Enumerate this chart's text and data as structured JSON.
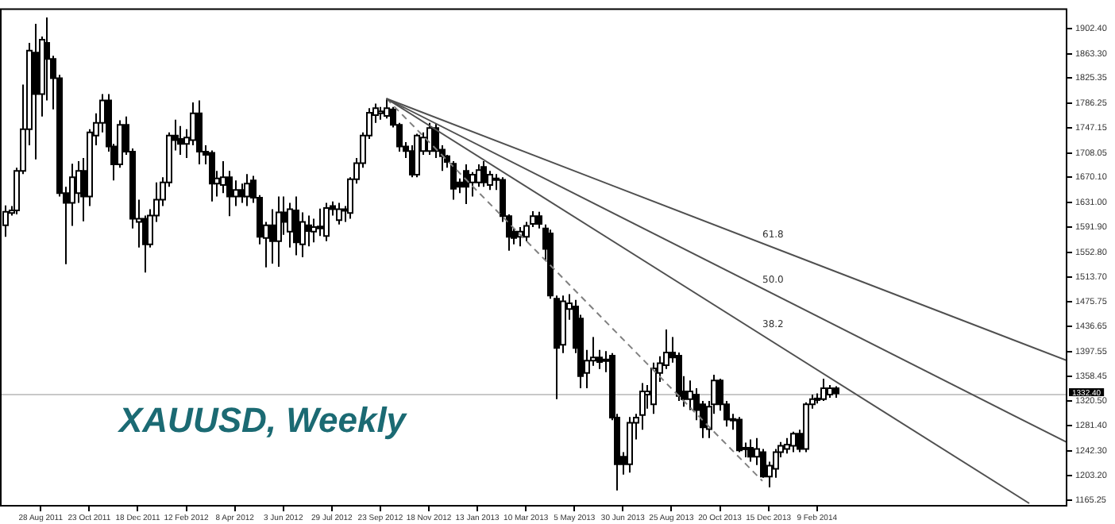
{
  "chart_data": {
    "type": "candlestick",
    "title": "XAUUSD, Weekly",
    "grid": false,
    "legend": false,
    "marker": "none",
    "xlim": [
      "2011-07-12",
      "2014-11-25"
    ],
    "xticks": [
      {
        "value": "2011-08-28",
        "label": "28 Aug 2011"
      },
      {
        "value": "2011-10-23",
        "label": "23 Oct 2011"
      },
      {
        "value": "2011-12-18",
        "label": "18 Dec 2011"
      },
      {
        "value": "2012-02-12",
        "label": "12 Feb 2012"
      },
      {
        "value": "2012-04-08",
        "label": "8 Apr 2012"
      },
      {
        "value": "2012-06-03",
        "label": "3 Jun 2012"
      },
      {
        "value": "2012-07-29",
        "label": "29 Jul 2012"
      },
      {
        "value": "2012-09-23",
        "label": "23 Sep 2012"
      },
      {
        "value": "2012-11-18",
        "label": "18 Nov 2012"
      },
      {
        "value": "2013-01-13",
        "label": "13 Jan 2013"
      },
      {
        "value": "2013-03-10",
        "label": "10 Mar 2013"
      },
      {
        "value": "2013-05-05",
        "label": "5 May 2013"
      },
      {
        "value": "2013-06-30",
        "label": "30 Jun 2013"
      },
      {
        "value": "2013-08-25",
        "label": "25 Aug 2013"
      },
      {
        "value": "2013-10-20",
        "label": "20 Oct 2013"
      },
      {
        "value": "2013-12-15",
        "label": "15 Dec 2013"
      },
      {
        "value": "2014-02-09",
        "label": "9 Feb 2014"
      }
    ],
    "ylim": [
      1155,
      1934
    ],
    "yticks": [
      {
        "value": 1902.4,
        "label": "1902.40"
      },
      {
        "value": 1863.3,
        "label": "1863.30"
      },
      {
        "value": 1825.35,
        "label": "1825.35"
      },
      {
        "value": 1786.25,
        "label": "1786.25"
      },
      {
        "value": 1747.15,
        "label": "1747.15"
      },
      {
        "value": 1708.05,
        "label": "1708.05"
      },
      {
        "value": 1670.1,
        "label": "1670.10"
      },
      {
        "value": 1631,
        "label": "1631.00"
      },
      {
        "value": 1591.9,
        "label": "1591.90"
      },
      {
        "value": 1552.8,
        "label": "1552.80"
      },
      {
        "value": 1513.7,
        "label": "1513.70"
      },
      {
        "value": 1475.75,
        "label": "1475.75"
      },
      {
        "value": 1436.65,
        "label": "1436.65"
      },
      {
        "value": 1397.55,
        "label": "1397.55"
      },
      {
        "value": 1358.45,
        "label": "1358.45"
      },
      {
        "value": 1320.5,
        "label": "1320.50"
      },
      {
        "value": 1281.4,
        "label": "1281.40"
      },
      {
        "value": 1242.3,
        "label": "1242.30"
      },
      {
        "value": 1203.2,
        "label": "1203.20"
      },
      {
        "value": 1165.25,
        "label": "1165.25"
      }
    ],
    "ref_lines": [
      {
        "axis": "y",
        "value": 1332.4,
        "label": "1332.40",
        "color": "#c8c8c8"
      }
    ],
    "annotations": [
      {
        "text": "61.8",
        "x": "2013-12-08",
        "y": 1572
      },
      {
        "text": "50.0",
        "x": "2013-12-08",
        "y": 1502
      },
      {
        "text": "38.2",
        "x": "2013-12-08",
        "y": 1432
      }
    ],
    "series": [
      {
        "type": "candlestick",
        "color": "#000000",
        "colors": [
          "#ffffff",
          "#ffffff",
          "#ffffff",
          "#ffffff",
          "#ffffff",
          "#000000",
          "#ffffff",
          "#000000",
          "#000000",
          "#000000",
          "#000000",
          "#ffffff",
          "#ffffff",
          "#000000",
          "#ffffff",
          "#ffffff",
          "#ffffff",
          "#000000",
          "#000000",
          "#ffffff",
          "#000000",
          "#000000",
          "#ffffff",
          "#000000",
          "#ffffff",
          "#ffffff",
          "#ffffff",
          "#ffffff",
          "#000000",
          "#000000",
          "#ffffff",
          "#ffffff",
          "#000000",
          "#000000",
          "#000000",
          "#ffffff",
          "#ffffff",
          "#000000",
          "#ffffff",
          "#000000",
          "#ffffff",
          "#000000",
          "#000000",
          "#ffffff",
          "#000000",
          "#ffffff",
          "#000000",
          "#ffffff",
          "#000000",
          "#ffffff",
          "#000000",
          "#ffffff",
          "#000000",
          "#ffffff",
          "#000000",
          "#ffffff",
          "#000000",
          "#ffffff",
          "#ffffff",
          "#ffffff",
          "#ffffff",
          "#ffffff",
          "#ffffff",
          "#ffffff",
          "#000000",
          "#000000",
          "#000000",
          "#000000",
          "#ffffff",
          "#ffffff",
          "#ffffff",
          "#000000",
          "#000000",
          "#000000",
          "#000000",
          "#000000",
          "#000000",
          "#ffffff",
          "#ffffff",
          "#000000",
          "#ffffff",
          "#000000",
          "#000000",
          "#000000",
          "#000000",
          "#ffffff",
          "#ffffff",
          "#ffffff",
          "#000000",
          "#000000",
          "#000000",
          "#000000",
          "#ffffff",
          "#ffffff",
          "#000000",
          "#000000",
          "#ffffff",
          "#ffffff",
          "#000000",
          "#000000",
          "#000000",
          "#000000",
          "#000000",
          "#ffffff",
          "#ffffff",
          "#ffffff",
          "#ffffff",
          "#ffffff",
          "#ffffff",
          "#ffffff",
          "#000000",
          "#000000",
          "#000000",
          "#ffffff",
          "#000000",
          "#000000",
          "#ffffff",
          "#ffffff",
          "#000000",
          "#000000",
          "#000000",
          "#000000",
          "#000000",
          "#000000",
          "#ffffff",
          "#000000",
          "#ffffff",
          "#ffffff",
          "#ffffff",
          "#ffffff",
          "#ffffff",
          "#000000",
          "#ffffff",
          "#ffffff",
          "#ffffff",
          "#ffffff",
          "#ffffff",
          "#000000"
        ],
        "x": [
          "2011-07-17",
          "2011-07-24",
          "2011-07-31",
          "2011-08-07",
          "2011-08-14",
          "2011-08-21",
          "2011-08-28",
          "2011-09-04",
          "2011-09-11",
          "2011-09-18",
          "2011-09-25",
          "2011-10-02",
          "2011-10-09",
          "2011-10-16",
          "2011-10-23",
          "2011-10-30",
          "2011-11-06",
          "2011-11-13",
          "2011-11-20",
          "2011-11-27",
          "2011-12-04",
          "2011-12-11",
          "2011-12-18",
          "2011-12-25",
          "2012-01-01",
          "2012-01-08",
          "2012-01-15",
          "2012-01-22",
          "2012-01-29",
          "2012-02-05",
          "2012-02-12",
          "2012-02-19",
          "2012-02-26",
          "2012-03-04",
          "2012-03-11",
          "2012-03-18",
          "2012-03-25",
          "2012-04-01",
          "2012-04-08",
          "2012-04-15",
          "2012-04-22",
          "2012-04-29",
          "2012-05-06",
          "2012-05-13",
          "2012-05-20",
          "2012-05-27",
          "2012-06-03",
          "2012-06-10",
          "2012-06-17",
          "2012-06-24",
          "2012-07-01",
          "2012-07-08",
          "2012-07-15",
          "2012-07-22",
          "2012-07-29",
          "2012-08-05",
          "2012-08-12",
          "2012-08-19",
          "2012-08-26",
          "2012-09-02",
          "2012-09-09",
          "2012-09-16",
          "2012-09-23",
          "2012-09-30",
          "2012-10-07",
          "2012-10-14",
          "2012-10-21",
          "2012-10-28",
          "2012-11-04",
          "2012-11-11",
          "2012-11-18",
          "2012-11-25",
          "2012-12-02",
          "2012-12-09",
          "2012-12-16",
          "2012-12-23",
          "2012-12-30",
          "2013-01-06",
          "2013-01-13",
          "2013-01-20",
          "2013-01-27",
          "2013-02-03",
          "2013-02-10",
          "2013-02-17",
          "2013-02-24",
          "2013-03-03",
          "2013-03-10",
          "2013-03-17",
          "2013-03-24",
          "2013-03-31",
          "2013-04-07",
          "2013-04-14",
          "2013-04-21",
          "2013-04-28",
          "2013-05-05",
          "2013-05-12",
          "2013-05-19",
          "2013-05-26",
          "2013-06-02",
          "2013-06-09",
          "2013-06-16",
          "2013-06-23",
          "2013-06-30",
          "2013-07-07",
          "2013-07-14",
          "2013-07-21",
          "2013-07-28",
          "2013-08-04",
          "2013-08-11",
          "2013-08-18",
          "2013-08-25",
          "2013-09-01",
          "2013-09-08",
          "2013-09-15",
          "2013-09-22",
          "2013-09-29",
          "2013-10-06",
          "2013-10-13",
          "2013-10-20",
          "2013-10-27",
          "2013-11-03",
          "2013-11-10",
          "2013-11-17",
          "2013-11-24",
          "2013-12-01",
          "2013-12-08",
          "2013-12-15",
          "2013-12-22",
          "2013-12-29",
          "2014-01-05",
          "2014-01-12",
          "2014-01-19",
          "2014-01-26",
          "2014-02-02",
          "2014-02-09",
          "2014-02-16",
          "2014-02-23",
          "2014-03-02"
        ],
        "ohlc": [
          [
            1595,
            1626,
            1577,
            1616
          ],
          [
            1614,
            1625,
            1610,
            1618
          ],
          [
            1618,
            1685,
            1612,
            1680
          ],
          [
            1680,
            1815,
            1675,
            1745
          ],
          [
            1745,
            1880,
            1720,
            1868
          ],
          [
            1865,
            1910,
            1698,
            1800
          ],
          [
            1800,
            1890,
            1765,
            1885
          ],
          [
            1880,
            1920,
            1790,
            1855
          ],
          [
            1855,
            1860,
            1776,
            1825
          ],
          [
            1825,
            1830,
            1640,
            1645
          ],
          [
            1645,
            1655,
            1534,
            1630
          ],
          [
            1630,
            1691,
            1594,
            1670
          ],
          [
            1645,
            1695,
            1630,
            1680
          ],
          [
            1680,
            1700,
            1601,
            1640
          ],
          [
            1640,
            1745,
            1625,
            1740
          ],
          [
            1735,
            1770,
            1720,
            1755
          ],
          [
            1755,
            1800,
            1740,
            1790
          ],
          [
            1790,
            1800,
            1710,
            1718
          ],
          [
            1718,
            1722,
            1665,
            1690
          ],
          [
            1690,
            1759,
            1685,
            1752
          ],
          [
            1752,
            1765,
            1705,
            1710
          ],
          [
            1710,
            1715,
            1590,
            1605
          ],
          [
            1600,
            1635,
            1560,
            1605
          ],
          [
            1605,
            1610,
            1521,
            1565
          ],
          [
            1565,
            1620,
            1560,
            1610
          ],
          [
            1610,
            1662,
            1600,
            1635
          ],
          [
            1635,
            1670,
            1625,
            1662
          ],
          [
            1662,
            1740,
            1655,
            1735
          ],
          [
            1735,
            1760,
            1712,
            1728
          ],
          [
            1730,
            1750,
            1705,
            1722
          ],
          [
            1722,
            1745,
            1700,
            1732
          ],
          [
            1728,
            1787,
            1720,
            1770
          ],
          [
            1770,
            1790,
            1690,
            1710
          ],
          [
            1710,
            1720,
            1690,
            1705
          ],
          [
            1708,
            1712,
            1632,
            1660
          ],
          [
            1660,
            1680,
            1640,
            1668
          ],
          [
            1658,
            1695,
            1645,
            1670
          ],
          [
            1670,
            1680,
            1609,
            1640
          ],
          [
            1640,
            1665,
            1625,
            1650
          ],
          [
            1650,
            1660,
            1630,
            1640
          ],
          [
            1640,
            1675,
            1625,
            1660
          ],
          [
            1665,
            1672,
            1630,
            1638
          ],
          [
            1638,
            1642,
            1565,
            1577
          ],
          [
            1575,
            1600,
            1529,
            1595
          ],
          [
            1595,
            1620,
            1535,
            1570
          ],
          [
            1570,
            1640,
            1530,
            1615
          ],
          [
            1615,
            1640,
            1580,
            1600
          ],
          [
            1585,
            1630,
            1560,
            1620
          ],
          [
            1618,
            1640,
            1548,
            1568
          ],
          [
            1565,
            1615,
            1545,
            1600
          ],
          [
            1595,
            1610,
            1562,
            1586
          ],
          [
            1585,
            1605,
            1568,
            1592
          ],
          [
            1593,
            1621,
            1578,
            1590
          ],
          [
            1578,
            1630,
            1570,
            1622
          ],
          [
            1625,
            1632,
            1610,
            1620
          ],
          [
            1603,
            1630,
            1596,
            1620
          ],
          [
            1620,
            1625,
            1600,
            1618
          ],
          [
            1614,
            1670,
            1605,
            1667
          ],
          [
            1667,
            1700,
            1660,
            1692
          ],
          [
            1692,
            1740,
            1685,
            1735
          ],
          [
            1735,
            1778,
            1730,
            1771
          ],
          [
            1767,
            1785,
            1755,
            1778
          ],
          [
            1770,
            1780,
            1760,
            1773
          ],
          [
            1766,
            1793,
            1762,
            1778
          ],
          [
            1776,
            1780,
            1748,
            1752
          ],
          [
            1752,
            1755,
            1710,
            1718
          ],
          [
            1718,
            1725,
            1700,
            1711
          ],
          [
            1711,
            1720,
            1670,
            1674
          ],
          [
            1674,
            1738,
            1670,
            1735
          ],
          [
            1711,
            1740,
            1705,
            1732
          ],
          [
            1711,
            1755,
            1705,
            1747
          ],
          [
            1747,
            1754,
            1700,
            1711
          ],
          [
            1713,
            1720,
            1680,
            1703
          ],
          [
            1703,
            1705,
            1685,
            1694
          ],
          [
            1691,
            1695,
            1635,
            1652
          ],
          [
            1662,
            1668,
            1645,
            1655
          ],
          [
            1680,
            1690,
            1628,
            1655
          ],
          [
            1662,
            1678,
            1640,
            1674
          ],
          [
            1662,
            1690,
            1655,
            1681
          ],
          [
            1686,
            1695,
            1655,
            1662
          ],
          [
            1658,
            1680,
            1650,
            1674
          ],
          [
            1668,
            1675,
            1650,
            1666
          ],
          [
            1666,
            1670,
            1600,
            1609
          ],
          [
            1609,
            1612,
            1555,
            1577
          ],
          [
            1585,
            1590,
            1565,
            1575
          ],
          [
            1577,
            1592,
            1562,
            1585
          ],
          [
            1577,
            1600,
            1570,
            1594
          ],
          [
            1597,
            1617,
            1592,
            1609
          ],
          [
            1609,
            1616,
            1590,
            1597
          ],
          [
            1590,
            1596,
            1540,
            1558
          ],
          [
            1582,
            1588,
            1480,
            1485
          ],
          [
            1480,
            1485,
            1323,
            1403
          ],
          [
            1408,
            1485,
            1395,
            1476
          ],
          [
            1464,
            1487,
            1447,
            1473
          ],
          [
            1468,
            1478,
            1395,
            1403
          ],
          [
            1449,
            1455,
            1340,
            1359
          ],
          [
            1364,
            1400,
            1340,
            1383
          ],
          [
            1383,
            1420,
            1375,
            1388
          ],
          [
            1388,
            1400,
            1370,
            1381
          ],
          [
            1385,
            1398,
            1365,
            1383
          ],
          [
            1391,
            1395,
            1290,
            1294
          ],
          [
            1294,
            1300,
            1180,
            1221
          ],
          [
            1233,
            1240,
            1205,
            1221
          ],
          [
            1221,
            1295,
            1208,
            1286
          ],
          [
            1286,
            1300,
            1260,
            1294
          ],
          [
            1298,
            1348,
            1275,
            1335
          ],
          [
            1330,
            1345,
            1308,
            1335
          ],
          [
            1315,
            1380,
            1300,
            1371
          ],
          [
            1364,
            1390,
            1350,
            1379
          ],
          [
            1376,
            1432,
            1370,
            1396
          ],
          [
            1396,
            1420,
            1380,
            1388
          ],
          [
            1391,
            1396,
            1320,
            1328
          ],
          [
            1335,
            1359,
            1311,
            1323
          ],
          [
            1323,
            1352,
            1306,
            1335
          ],
          [
            1330,
            1340,
            1290,
            1306
          ],
          [
            1315,
            1320,
            1262,
            1279
          ],
          [
            1276,
            1320,
            1262,
            1311
          ],
          [
            1315,
            1361,
            1300,
            1352
          ],
          [
            1352,
            1355,
            1305,
            1315
          ],
          [
            1315,
            1320,
            1280,
            1291
          ],
          [
            1292,
            1300,
            1275,
            1290
          ],
          [
            1291,
            1295,
            1240,
            1243
          ],
          [
            1247,
            1255,
            1232,
            1245
          ],
          [
            1247,
            1260,
            1225,
            1233
          ],
          [
            1233,
            1262,
            1220,
            1245
          ],
          [
            1240,
            1245,
            1200,
            1202
          ],
          [
            1202,
            1225,
            1185,
            1219
          ],
          [
            1214,
            1245,
            1200,
            1240
          ],
          [
            1240,
            1256,
            1232,
            1250
          ],
          [
            1245,
            1262,
            1238,
            1252
          ],
          [
            1250,
            1272,
            1240,
            1269
          ],
          [
            1269,
            1275,
            1240,
            1245
          ],
          [
            1245,
            1318,
            1240,
            1315
          ],
          [
            1315,
            1330,
            1308,
            1323
          ],
          [
            1322,
            1332,
            1316,
            1324
          ],
          [
            1323,
            1355,
            1320,
            1340
          ],
          [
            1330,
            1345,
            1325,
            1340
          ],
          [
            1340,
            1343,
            1325,
            1332
          ]
        ]
      },
      {
        "type": "line",
        "color": "#505050",
        "x": [
          "2012-09-30",
          "2014-11-25"
        ],
        "values": [
          1793,
          1383
        ]
      },
      {
        "type": "line",
        "color": "#505050",
        "x": [
          "2012-09-30",
          "2014-11-25"
        ],
        "values": [
          1793,
          1255
        ]
      },
      {
        "type": "line",
        "color": "#505050",
        "x": [
          "2012-09-30",
          "2014-10-12"
        ],
        "values": [
          1793,
          1160
        ]
      },
      {
        "type": "line",
        "color": "#808080",
        "line_style": "dashed",
        "x": [
          "2012-09-30",
          "2013-12-08"
        ],
        "values": [
          1793,
          1195
        ]
      }
    ]
  }
}
